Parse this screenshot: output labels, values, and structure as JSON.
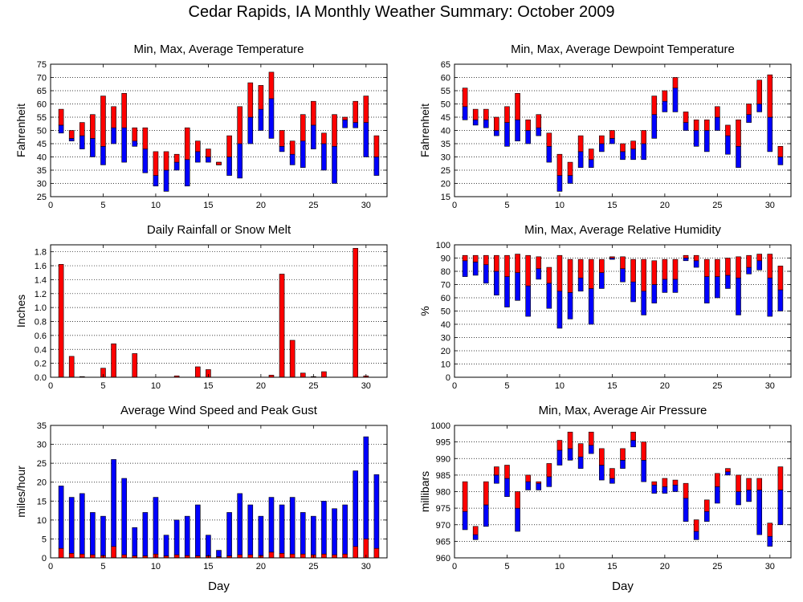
{
  "title": "Cedar Rapids, IA Monthly Weather Summary: October 2009",
  "colors": {
    "min_to_avg": "#0000ff",
    "avg_to_max": "#ff0000",
    "frame": "#000000",
    "grid": "#000000"
  },
  "chart_data": [
    {
      "id": "temperature",
      "type": "bar",
      "title": "Min, Max, Average Temperature",
      "xlabel": "",
      "ylabel": "Fahrenheit",
      "xlim": [
        0,
        32
      ],
      "ylim": [
        25,
        75
      ],
      "yticks": [
        25,
        30,
        35,
        40,
        45,
        50,
        55,
        60,
        65,
        70,
        75
      ],
      "xticks": [
        0,
        5,
        10,
        15,
        20,
        25,
        30
      ],
      "grid": true,
      "x": [
        1,
        2,
        3,
        4,
        5,
        6,
        7,
        8,
        9,
        10,
        11,
        12,
        13,
        14,
        15,
        16,
        17,
        18,
        19,
        20,
        21,
        22,
        23,
        24,
        25,
        26,
        27,
        28,
        29,
        30,
        31
      ],
      "series": [
        {
          "role": "min",
          "values": [
            49,
            46,
            43,
            40,
            37,
            45,
            38,
            44,
            34,
            29,
            27,
            35,
            29,
            38,
            38,
            37,
            33,
            32,
            45,
            50,
            47,
            42,
            37,
            36,
            43,
            35,
            30,
            51,
            51,
            40,
            33
          ]
        },
        {
          "role": "avg",
          "values": [
            52,
            47,
            48,
            47,
            44,
            51,
            51,
            46,
            43,
            33,
            35,
            38,
            39,
            42,
            40,
            38,
            40,
            45,
            55,
            58,
            62,
            44,
            41,
            46,
            52,
            45,
            44,
            54,
            53,
            53,
            40
          ]
        },
        {
          "role": "max",
          "values": [
            58,
            50,
            53,
            56,
            63,
            59,
            64,
            51,
            51,
            42,
            42,
            41,
            51,
            46,
            43,
            37,
            48,
            59,
            68,
            67,
            72,
            50,
            46,
            56,
            61,
            49,
            56,
            55,
            61,
            63,
            48
          ]
        }
      ]
    },
    {
      "id": "dewpoint",
      "type": "bar",
      "title": "Min, Max, Average Dewpoint Temperature",
      "xlabel": "",
      "ylabel": "Fahrenheit",
      "xlim": [
        0,
        32
      ],
      "ylim": [
        15,
        65
      ],
      "yticks": [
        15,
        20,
        25,
        30,
        35,
        40,
        45,
        50,
        55,
        60,
        65
      ],
      "xticks": [
        0,
        5,
        10,
        15,
        20,
        25,
        30
      ],
      "grid": true,
      "x": [
        1,
        2,
        3,
        4,
        5,
        6,
        7,
        8,
        9,
        10,
        11,
        12,
        13,
        14,
        15,
        16,
        17,
        18,
        19,
        20,
        21,
        22,
        23,
        24,
        25,
        26,
        27,
        28,
        29,
        30,
        31
      ],
      "series": [
        {
          "role": "min",
          "values": [
            44,
            42,
            41,
            38,
            34,
            36,
            35,
            38,
            28,
            17,
            20,
            26,
            26,
            32,
            35,
            29,
            29,
            29,
            37,
            47,
            47,
            40,
            34,
            32,
            40,
            31,
            26,
            43,
            47,
            32,
            27
          ]
        },
        {
          "role": "avg",
          "values": [
            49,
            44,
            44,
            40,
            43,
            44,
            40,
            41,
            34,
            23,
            23,
            32,
            29,
            35,
            37,
            32,
            33,
            35,
            46,
            51,
            56,
            43,
            40,
            40,
            45,
            38,
            34,
            46,
            50,
            45,
            30
          ]
        },
        {
          "role": "max",
          "values": [
            56,
            48,
            48,
            45,
            49,
            54,
            44,
            46,
            39,
            31,
            28,
            38,
            33,
            38,
            40,
            35,
            36,
            40,
            53,
            55,
            60,
            47,
            44,
            44,
            49,
            42,
            44,
            50,
            59,
            61,
            34
          ]
        }
      ]
    },
    {
      "id": "rainfall",
      "type": "bar",
      "title": "Daily Rainfall or Snow Melt",
      "xlabel": "",
      "ylabel": "Inches",
      "xlim": [
        0,
        32
      ],
      "ylim": [
        0,
        1.9
      ],
      "yticks": [
        0.0,
        0.2,
        0.4,
        0.6,
        0.8,
        1.0,
        1.2,
        1.4,
        1.6,
        1.8
      ],
      "xticks": [
        0,
        5,
        10,
        15,
        20,
        25,
        30
      ],
      "grid": true,
      "x": [
        1,
        2,
        3,
        4,
        5,
        6,
        7,
        8,
        9,
        10,
        11,
        12,
        13,
        14,
        15,
        16,
        17,
        18,
        19,
        20,
        21,
        22,
        23,
        24,
        25,
        26,
        27,
        28,
        29,
        30,
        31
      ],
      "values": [
        1.62,
        0.3,
        0.01,
        0,
        0.13,
        0.48,
        0,
        0.34,
        0,
        0,
        0,
        0.02,
        0,
        0.15,
        0.11,
        0,
        0,
        0,
        0,
        0,
        0.03,
        1.48,
        0.53,
        0.06,
        0.01,
        0.08,
        0,
        0,
        1.85,
        0.02,
        0
      ]
    },
    {
      "id": "humidity",
      "type": "bar",
      "title": "Min, Max, Average Relative Humidity",
      "xlabel": "",
      "ylabel": "%",
      "xlim": [
        0,
        32
      ],
      "ylim": [
        0,
        100
      ],
      "yticks": [
        0,
        10,
        20,
        30,
        40,
        50,
        60,
        70,
        80,
        90,
        100
      ],
      "xticks": [
        0,
        5,
        10,
        15,
        20,
        25,
        30
      ],
      "grid": true,
      "x": [
        1,
        2,
        3,
        4,
        5,
        6,
        7,
        8,
        9,
        10,
        11,
        12,
        13,
        14,
        15,
        16,
        17,
        18,
        19,
        20,
        21,
        22,
        23,
        24,
        25,
        26,
        27,
        28,
        29,
        30,
        31
      ],
      "series": [
        {
          "role": "min",
          "values": [
            76,
            77,
            71,
            62,
            53,
            58,
            46,
            74,
            52,
            37,
            44,
            65,
            40,
            67,
            89,
            72,
            57,
            47,
            56,
            64,
            64,
            88,
            83,
            56,
            60,
            67,
            47,
            78,
            81,
            46,
            50
          ]
        },
        {
          "role": "avg",
          "values": [
            88,
            87,
            85,
            80,
            76,
            79,
            69,
            82,
            71,
            65,
            64,
            75,
            67,
            79,
            90,
            82,
            72,
            65,
            70,
            74,
            74,
            90,
            88,
            76,
            76,
            77,
            75,
            83,
            88,
            75,
            66
          ]
        },
        {
          "role": "max",
          "values": [
            92,
            92,
            92,
            92,
            92,
            93,
            92,
            91,
            83,
            92,
            89,
            89,
            89,
            89,
            91,
            91,
            89,
            89,
            88,
            89,
            89,
            92,
            92,
            89,
            89,
            90,
            91,
            92,
            93,
            93,
            84
          ]
        }
      ]
    },
    {
      "id": "wind",
      "type": "bar",
      "title": "Average Wind Speed and Peak Gust",
      "xlabel": "Day",
      "ylabel": "miles/hour",
      "xlim": [
        0,
        32
      ],
      "ylim": [
        0,
        35
      ],
      "yticks": [
        0,
        5,
        10,
        15,
        20,
        25,
        30,
        35
      ],
      "xticks": [
        0,
        5,
        10,
        15,
        20,
        25,
        30
      ],
      "grid": true,
      "x": [
        1,
        2,
        3,
        4,
        5,
        6,
        7,
        8,
        9,
        10,
        11,
        12,
        13,
        14,
        15,
        16,
        17,
        18,
        19,
        20,
        21,
        22,
        23,
        24,
        25,
        26,
        27,
        28,
        29,
        30,
        31
      ],
      "series": [
        {
          "role": "average",
          "values": [
            2.5,
            1.2,
            1,
            0.8,
            0.6,
            3,
            0.8,
            0.5,
            0.5,
            1,
            0.5,
            0.8,
            0.6,
            0.5,
            0.5,
            0.3,
            0.5,
            0.8,
            0.8,
            0.6,
            1.5,
            1.2,
            1,
            1,
            0.8,
            1,
            0.8,
            1,
            3,
            5,
            2.5
          ]
        },
        {
          "role": "peak_gust",
          "values": [
            19,
            16,
            17,
            12,
            11,
            26,
            21,
            8,
            12,
            16,
            6,
            10,
            11,
            14,
            6,
            2,
            12,
            17,
            14,
            11,
            16,
            14,
            16,
            12,
            11,
            15,
            13,
            14,
            23,
            32,
            22
          ]
        }
      ]
    },
    {
      "id": "pressure",
      "type": "bar",
      "title": "Min, Max, Average Air Pressure",
      "xlabel": "Day",
      "ylabel": "millibars",
      "xlim": [
        0,
        32
      ],
      "ylim": [
        960,
        1000
      ],
      "yticks": [
        960,
        965,
        970,
        975,
        980,
        985,
        990,
        995,
        1000
      ],
      "xticks": [
        0,
        5,
        10,
        15,
        20,
        25,
        30
      ],
      "grid": true,
      "x": [
        1,
        2,
        3,
        4,
        5,
        6,
        7,
        8,
        9,
        10,
        11,
        12,
        13,
        14,
        15,
        16,
        17,
        18,
        19,
        20,
        21,
        22,
        23,
        24,
        25,
        26,
        27,
        28,
        29,
        30,
        31
      ],
      "series": [
        {
          "role": "min",
          "values": [
            968.5,
            965.5,
            969.5,
            982.5,
            978.5,
            968,
            980.5,
            980.5,
            981.5,
            988,
            989.5,
            987,
            991.5,
            983.5,
            982.5,
            987,
            993.5,
            983,
            979.5,
            979.5,
            980,
            971,
            965.5,
            971,
            976.5,
            985,
            976,
            977,
            967,
            963.5,
            970
          ]
        },
        {
          "role": "avg",
          "values": [
            974,
            967,
            976,
            985,
            984,
            975,
            983,
            982.5,
            984.5,
            992.5,
            993,
            990.5,
            994,
            988,
            984,
            989.5,
            995.5,
            989.5,
            982,
            981.5,
            982,
            978,
            968,
            974,
            981.5,
            986,
            980,
            980.5,
            980.5,
            966.5,
            980.5
          ]
        },
        {
          "role": "max",
          "values": [
            983,
            969.5,
            983,
            987.5,
            988,
            980,
            985,
            983,
            988.5,
            995.5,
            998,
            994.5,
            998,
            993,
            987,
            993,
            998,
            995,
            983,
            984,
            983.5,
            982.5,
            971.5,
            977.5,
            985.5,
            987,
            985,
            984,
            984,
            970.5,
            987.5
          ]
        }
      ]
    }
  ]
}
